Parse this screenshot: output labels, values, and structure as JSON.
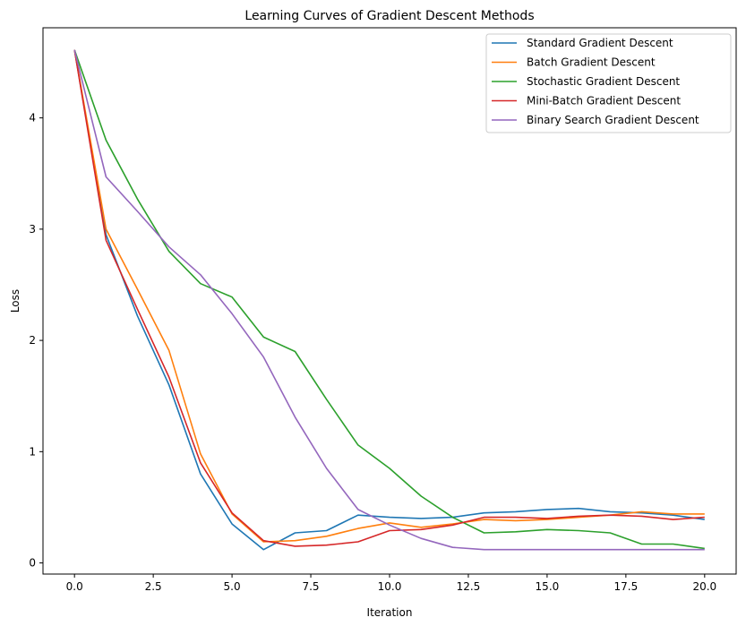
{
  "chart_data": {
    "type": "line",
    "title": "Learning Curves of Gradient Descent Methods",
    "xlabel": "Iteration",
    "ylabel": "Loss",
    "xlim": [
      -1.0,
      21.0
    ],
    "ylim": [
      -0.1,
      4.81
    ],
    "xticks": [
      0.0,
      2.5,
      5.0,
      7.5,
      10.0,
      12.5,
      15.0,
      17.5,
      20.0
    ],
    "xtick_labels": [
      "0.0",
      "2.5",
      "5.0",
      "7.5",
      "10.0",
      "12.5",
      "15.0",
      "17.5",
      "20.0"
    ],
    "yticks": [
      0,
      1,
      2,
      3,
      4
    ],
    "ytick_labels": [
      "0",
      "1",
      "2",
      "3",
      "4"
    ],
    "legend_position": "top-right",
    "grid": false,
    "x": [
      0,
      1,
      2,
      3,
      4,
      5,
      6,
      7,
      8,
      9,
      10,
      11,
      12,
      13,
      14,
      15,
      16,
      17,
      18,
      19,
      20
    ],
    "series": [
      {
        "name": "Standard Gradient Descent",
        "color": "#1f77b4",
        "values": [
          4.61,
          2.95,
          2.22,
          1.6,
          0.8,
          0.35,
          0.12,
          0.27,
          0.29,
          0.43,
          0.41,
          0.4,
          0.41,
          0.45,
          0.46,
          0.48,
          0.49,
          0.46,
          0.45,
          0.43,
          0.39
        ]
      },
      {
        "name": "Batch Gradient Descent",
        "color": "#ff7f0e",
        "values": [
          4.61,
          3.0,
          2.46,
          1.91,
          0.98,
          0.44,
          0.19,
          0.2,
          0.24,
          0.31,
          0.36,
          0.32,
          0.35,
          0.39,
          0.38,
          0.39,
          0.41,
          0.43,
          0.46,
          0.44,
          0.44
        ]
      },
      {
        "name": "Stochastic Gradient Descent",
        "color": "#2ca02c",
        "values": [
          4.61,
          3.8,
          3.27,
          2.8,
          2.51,
          2.39,
          2.03,
          1.9,
          1.47,
          1.06,
          0.85,
          0.6,
          0.41,
          0.27,
          0.28,
          0.3,
          0.29,
          0.27,
          0.17,
          0.17,
          0.13
        ]
      },
      {
        "name": "Mini-Batch Gradient Descent",
        "color": "#d62728",
        "values": [
          4.61,
          2.9,
          2.28,
          1.67,
          0.9,
          0.45,
          0.2,
          0.15,
          0.16,
          0.19,
          0.29,
          0.3,
          0.34,
          0.41,
          0.41,
          0.4,
          0.42,
          0.43,
          0.42,
          0.39,
          0.41
        ]
      },
      {
        "name": "Binary Search Gradient Descent",
        "color": "#9467bd",
        "values": [
          4.61,
          3.47,
          3.16,
          2.84,
          2.59,
          2.24,
          1.85,
          1.31,
          0.85,
          0.48,
          0.34,
          0.22,
          0.14,
          0.12,
          0.12,
          0.12,
          0.12,
          0.12,
          0.12,
          0.12,
          0.12
        ]
      }
    ]
  }
}
